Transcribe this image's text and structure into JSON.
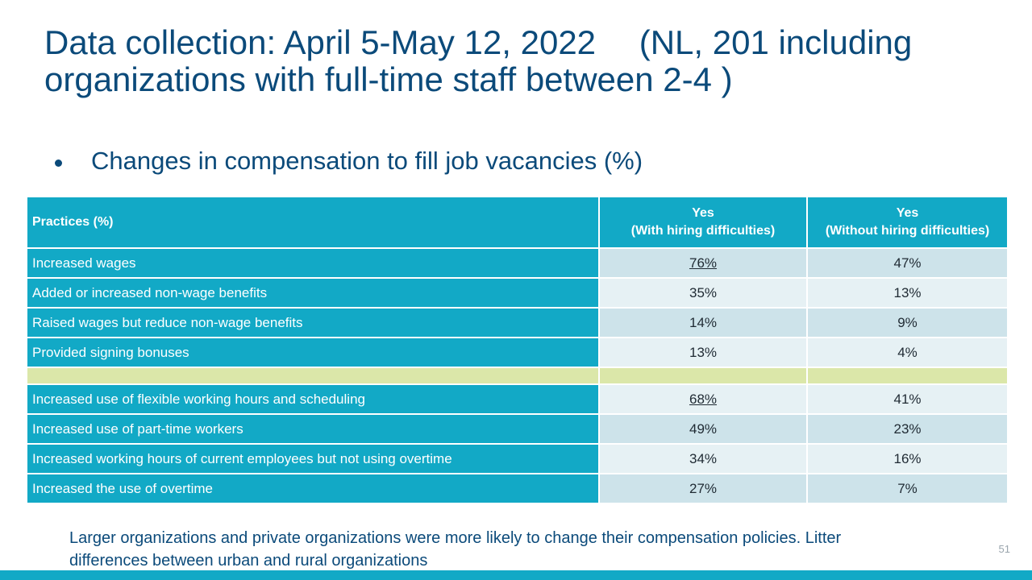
{
  "slide": {
    "title": "Data collection: April 5-May 12, 2022 　(NL, 201 including organizations with full-time staff between 2-4 )",
    "bullet": "Changes in compensation to fill job vacancies (%)",
    "note": "Larger organizations and private organizations were more likely to change their compensation policies. Litter differences between urban and rural organizations",
    "page_number": "51"
  },
  "table": {
    "headers": {
      "practices": "Practices (%)",
      "with_line1": "Yes",
      "with_line2": "(With hiring difficulties)",
      "without_line1": "Yes",
      "without_line2": "(Without hiring difficulties)"
    },
    "rows": [
      {
        "label": "Increased wages",
        "with": "76%",
        "without": "47%"
      },
      {
        "label": "Added or increased non-wage benefits",
        "with": "35%",
        "without": "13%"
      },
      {
        "label": "Raised wages but reduce non-wage benefits",
        "with": "14%",
        "without": "9%"
      },
      {
        "label": "Provided signing bonuses",
        "with": "13%",
        "without": "4%"
      },
      {
        "label": "Increased use of flexible working hours and scheduling",
        "with": "68%",
        "without": "41%"
      },
      {
        "label": "Increased use of part-time workers",
        "with": "49%",
        "without": "23%"
      },
      {
        "label": "Increased working hours of current employees but not using overtime",
        "with": "34%",
        "without": "16%"
      },
      {
        "label": "Increased the use of overtime",
        "with": "27%",
        "without": "7%"
      }
    ]
  },
  "colors": {
    "title_blue": "#0b4a7a",
    "header_teal": "#12a9c6",
    "row_dark": "#cde3ea",
    "row_light": "#e6f1f4",
    "spacer_green": "#dbe7a9"
  }
}
